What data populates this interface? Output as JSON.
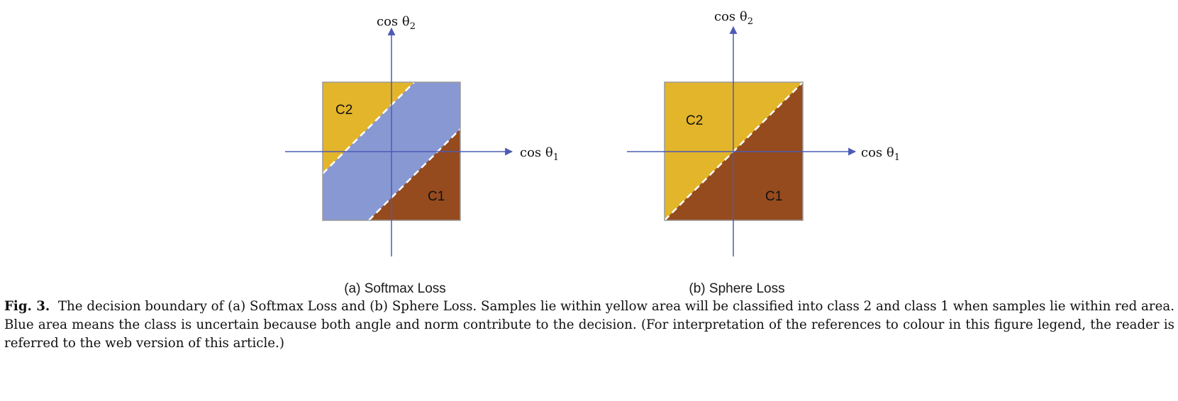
{
  "panel_a": {
    "label": "(a) Softmax Loss",
    "region_c2": "C2",
    "region_c1": "C1",
    "x_axis": "cos θ",
    "x_axis_sub": "1",
    "y_axis": "cos θ",
    "y_axis_sub": "2"
  },
  "panel_b": {
    "label": "(b) Sphere Loss",
    "region_c2": "C2",
    "region_c1": "C1",
    "x_axis": "cos θ",
    "x_axis_sub": "1",
    "y_axis": "cos θ",
    "y_axis_sub": "2"
  },
  "colors": {
    "class2_yellow": "#E3B52A",
    "class1_brown": "#954B1E",
    "uncertain_blue": "#8898D3",
    "axis": "#4D5BB5",
    "boundary": "#ffffff"
  },
  "caption": {
    "prefix": "Fig. 3.",
    "text": "The decision boundary of (a) Softmax Loss and (b) Sphere Loss. Samples lie within yellow area will be classified into class 2 and class 1 when samples lie within red area. Blue area means the class is uncertain because both angle and norm contribute to the decision. (For interpretation of the references to colour in this figure legend, the reader is referred to the web version of this article.)"
  }
}
